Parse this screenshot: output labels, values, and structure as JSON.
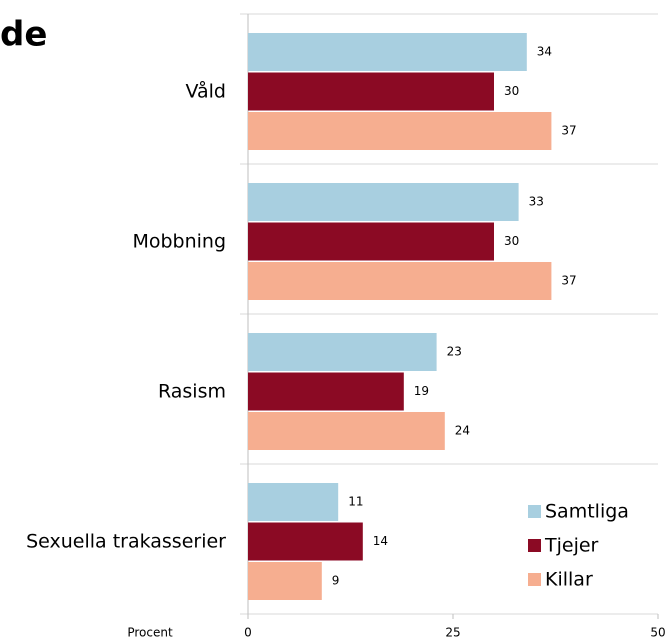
{
  "chart_data": {
    "type": "barh",
    "title": "de",
    "xlabel": "Procent",
    "categories": [
      "Våld",
      "Mobbning",
      "Rasism",
      "Sexuella trakasserier"
    ],
    "series": [
      {
        "name": "Samtliga",
        "color": "#a8cfe0",
        "values": [
          34,
          33,
          23,
          11
        ]
      },
      {
        "name": "Tjejer",
        "color": "#8b0a24",
        "values": [
          30,
          30,
          19,
          14
        ]
      },
      {
        "name": "Killar",
        "color": "#f6ae90",
        "values": [
          37,
          37,
          24,
          9
        ]
      }
    ],
    "xlim": [
      0,
      50
    ],
    "xticks": [
      0,
      25,
      50
    ],
    "legend": "lower right"
  }
}
